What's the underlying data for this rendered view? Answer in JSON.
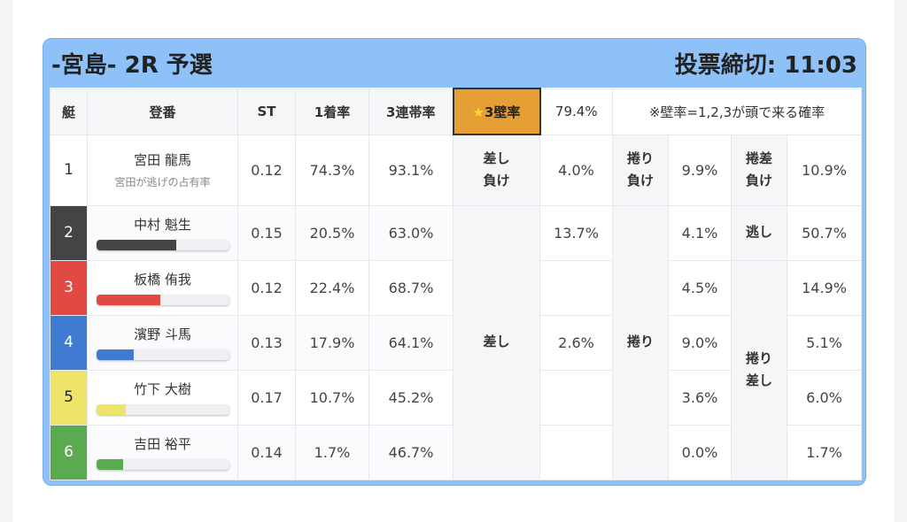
{
  "header": {
    "title": "-宮島- 2R 予選",
    "deadline": "投票締切: 11:03"
  },
  "columns": {
    "boat": "艇",
    "racer": "登番",
    "st": "ST",
    "first": "1着率",
    "top3": "3連帯率",
    "wall_star": "★",
    "wall": "3壁率",
    "wall_value": "79.4%",
    "note": "※壁率=1,2,3が頭で来る確率"
  },
  "rows": [
    {
      "boat": "1",
      "name": "宮田 龍馬",
      "sub": "宮田が逃げの占有率",
      "st": "0.12",
      "first": "74.3%",
      "top3": "93.1%",
      "color": "#ffffff",
      "text": "#333333",
      "bar": null
    },
    {
      "boat": "2",
      "name": "中村 魁生",
      "st": "0.15",
      "first": "20.5%",
      "top3": "63.0%",
      "color": "#444444",
      "text": "#ffffff",
      "bar": 60
    },
    {
      "boat": "3",
      "name": "板橋 侑我",
      "st": "0.12",
      "first": "22.4%",
      "top3": "68.7%",
      "color": "#e04a43",
      "text": "#ffffff",
      "bar": 48
    },
    {
      "boat": "4",
      "name": "濱野 斗馬",
      "st": "0.13",
      "first": "17.9%",
      "top3": "64.1%",
      "color": "#3f7bd0",
      "text": "#ffffff",
      "bar": 28
    },
    {
      "boat": "5",
      "name": "竹下 大樹",
      "st": "0.17",
      "first": "10.7%",
      "top3": "45.2%",
      "color": "#eee46a",
      "text": "#222222",
      "bar": 22
    },
    {
      "boat": "6",
      "name": "吉田 裕平",
      "st": "0.14",
      "first": "1.7%",
      "top3": "46.7%",
      "color": "#5aaa50",
      "text": "#ffffff",
      "bar": 20
    }
  ],
  "patterns": {
    "sashi_make": "差し負け",
    "sashi_make_val": "4.0%",
    "makuri_make": "捲り負け",
    "makuri_make_val": "9.9%",
    "makusashi_make": "捲差負け",
    "makusashi_make_val": "10.9%",
    "sashi": "差し",
    "sashi_vals": [
      "13.7%",
      "",
      "2.6%",
      "",
      ""
    ],
    "makuri": "捲り",
    "makuri_vals": [
      "4.1%",
      "4.5%",
      "9.0%",
      "3.6%",
      "0.0%"
    ],
    "nige": "逃し",
    "nige_val": "50.7%",
    "makurisashi": "捲り差し",
    "makurisashi_vals": [
      "14.9%",
      "5.1%",
      "6.0%",
      "1.7%"
    ]
  }
}
